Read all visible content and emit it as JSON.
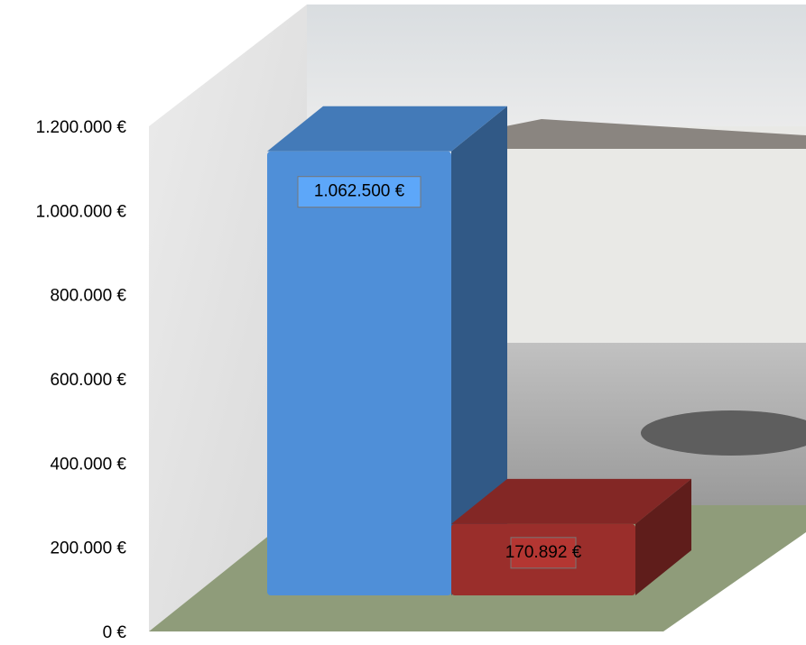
{
  "chart_data": {
    "type": "bar3d",
    "series": [
      {
        "color": "#4f8fd8",
        "values": [
          1062500
        ],
        "value_labels": [
          "1.062.500 €"
        ]
      },
      {
        "color": "#9a2e2b",
        "values": [
          170892
        ],
        "value_labels": [
          "170.892 €"
        ]
      }
    ],
    "ylim": [
      0,
      1200000
    ],
    "yticks": [
      {
        "value": 0,
        "label": "0 €"
      },
      {
        "value": 200000,
        "label": "200.000 €"
      },
      {
        "value": 400000,
        "label": "400.000 €"
      },
      {
        "value": 600000,
        "label": "600.000 €"
      },
      {
        "value": 800000,
        "label": "800.000 €"
      },
      {
        "value": 1000000,
        "label": "1.000.000 €"
      },
      {
        "value": 1200000,
        "label": "1.200.000 €"
      }
    ]
  }
}
